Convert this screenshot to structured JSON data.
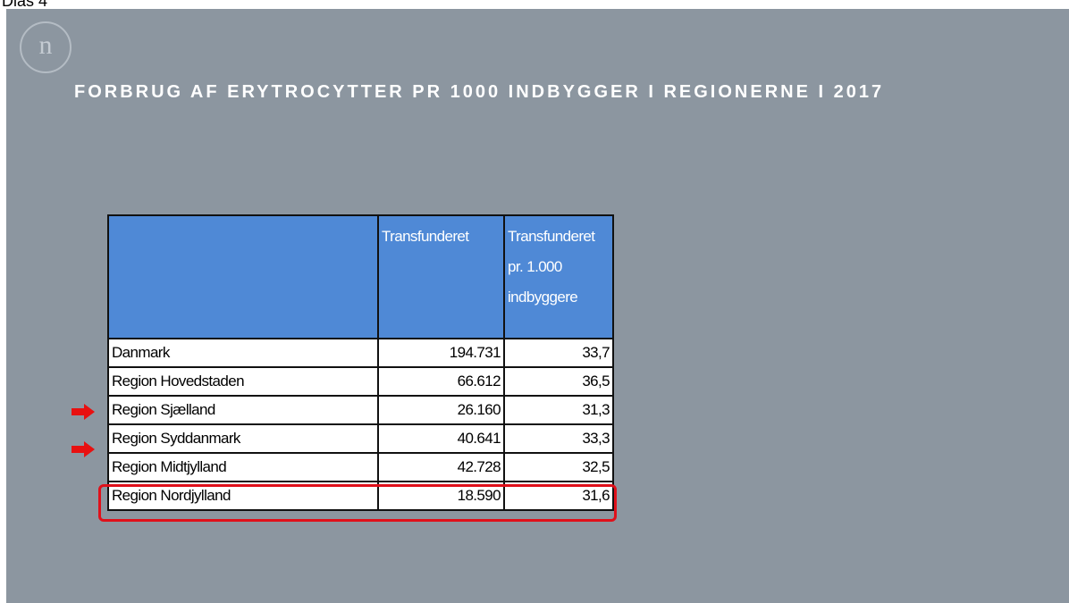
{
  "page_label": "Dias 4",
  "slide": {
    "title": "FORBRUG AF ERYTROCYTTER PR 1000 INDBYGGER I REGIONERNE I 2017",
    "logo": "n"
  },
  "table": {
    "header": [
      "Transfunderet",
      "Transfunderet pr. 1.000 indbyggere"
    ],
    "rows": [
      [
        "Danmark",
        "194.731",
        "33,7"
      ],
      [
        "Region Hovedstaden",
        "66.612",
        "36,5"
      ],
      [
        "Region Sjælland",
        "26.160",
        "31,3"
      ],
      [
        "Region Syddanmark",
        "40.641",
        "33,3"
      ],
      [
        "Region Midtjylland",
        "42.728",
        "32,5"
      ],
      [
        "Region Nordjylland",
        "18.590",
        "31,6"
      ]
    ]
  }
}
